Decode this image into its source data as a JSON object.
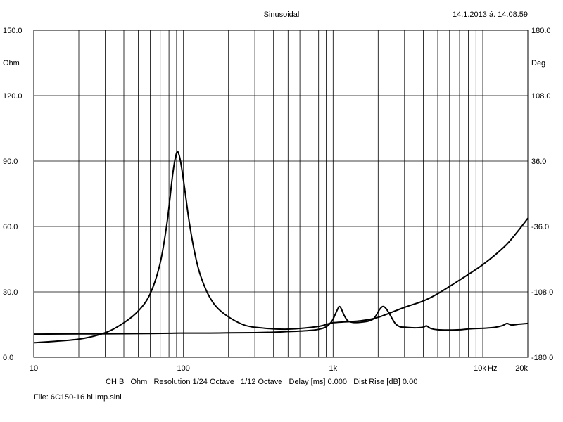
{
  "header": {
    "title": "Sinusoidal",
    "timestamp": "14.1.2013 á. 14.08.59"
  },
  "footer": {
    "channel": "CH B",
    "unit": "Ohm",
    "resolution": "Resolution 1/24 Octave",
    "smoothing": "1/12 Octave",
    "delay": "Delay [ms] 0.000",
    "dist_rise": "Dist Rise [dB] 0.00",
    "file": "File: 6C150-16 hi Imp.sini"
  },
  "chart_data": {
    "type": "line",
    "x_scale": "log",
    "xlim": [
      10,
      20000
    ],
    "x_ticks": [
      {
        "value": 10,
        "label": "10"
      },
      {
        "value": 100,
        "label": "100"
      },
      {
        "value": 1000,
        "label": "1k"
      },
      {
        "value": 10000,
        "label": "10k"
      },
      {
        "value": 20000,
        "label": "20k"
      }
    ],
    "x_unit": "Hz",
    "ylim_left": [
      0,
      150
    ],
    "y_ticks_left": [
      "0.0",
      "30.0",
      "60.0",
      "90.0",
      "120.0",
      "150.0"
    ],
    "ylabel_left": "Ohm",
    "ylim_right": [
      -180,
      180
    ],
    "y_ticks_right": [
      "-180.0",
      "-108.0",
      "-36.0",
      "36.0",
      "108.0",
      "180.0"
    ],
    "ylabel_right": "Deg",
    "grid": true,
    "series": [
      {
        "axis": "left",
        "color": "#000000",
        "points": [
          [
            10,
            10.6
          ],
          [
            20,
            10.7
          ],
          [
            40,
            10.8
          ],
          [
            60,
            10.9
          ],
          [
            80,
            11.0
          ],
          [
            100,
            11.1
          ],
          [
            150,
            11.1
          ],
          [
            200,
            11.2
          ],
          [
            300,
            11.3
          ],
          [
            400,
            11.5
          ],
          [
            500,
            11.8
          ],
          [
            600,
            12.0
          ],
          [
            700,
            12.3
          ],
          [
            800,
            12.8
          ],
          [
            900,
            14.0
          ],
          [
            980,
            16.5
          ],
          [
            1030,
            19.5
          ],
          [
            1080,
            22.5
          ],
          [
            1100,
            23.3
          ],
          [
            1130,
            22.5
          ],
          [
            1180,
            19.5
          ],
          [
            1250,
            16.8
          ],
          [
            1350,
            16.0
          ],
          [
            1500,
            16.0
          ],
          [
            1700,
            16.5
          ],
          [
            1850,
            17.5
          ],
          [
            1950,
            19.5
          ],
          [
            2050,
            22.0
          ],
          [
            2150,
            23.3
          ],
          [
            2250,
            22.5
          ],
          [
            2400,
            19.5
          ],
          [
            2600,
            15.5
          ],
          [
            2800,
            14.0
          ],
          [
            3000,
            13.8
          ],
          [
            3500,
            13.5
          ],
          [
            4000,
            13.8
          ],
          [
            4200,
            14.4
          ],
          [
            4500,
            13.2
          ],
          [
            5000,
            12.6
          ],
          [
            6000,
            12.5
          ],
          [
            7000,
            12.6
          ],
          [
            8000,
            13.0
          ],
          [
            9000,
            13.2
          ],
          [
            10000,
            13.3
          ],
          [
            12000,
            13.7
          ],
          [
            13500,
            14.5
          ],
          [
            14500,
            15.5
          ],
          [
            15500,
            14.8
          ],
          [
            17000,
            15.1
          ],
          [
            20000,
            15.5
          ]
        ]
      },
      {
        "axis": "right",
        "color": "#000000",
        "points": [
          [
            10,
            -164.0
          ],
          [
            20,
            -160.0
          ],
          [
            30,
            -153.0
          ],
          [
            40,
            -142.0
          ],
          [
            50,
            -129.0
          ],
          [
            60,
            -110.0
          ],
          [
            70,
            -76.0
          ],
          [
            78,
            -30.0
          ],
          [
            85,
            23.0
          ],
          [
            90,
            45.0
          ],
          [
            93,
            44.0
          ],
          [
            97,
            30.0
          ],
          [
            103,
            0.0
          ],
          [
            110,
            -34.0
          ],
          [
            120,
            -68.0
          ],
          [
            130,
            -90.0
          ],
          [
            150,
            -114.0
          ],
          [
            180,
            -130.0
          ],
          [
            250,
            -144.0
          ],
          [
            350,
            -148.0
          ],
          [
            500,
            -149.0
          ],
          [
            800,
            -146.0
          ],
          [
            1000,
            -142.0
          ],
          [
            1500,
            -140.0
          ],
          [
            2000,
            -136.0
          ],
          [
            3000,
            -125.0
          ],
          [
            4000,
            -118.0
          ],
          [
            5000,
            -110.0
          ],
          [
            7000,
            -95.0
          ],
          [
            10000,
            -78.0
          ],
          [
            14000,
            -58.0
          ],
          [
            17000,
            -42.0
          ],
          [
            20000,
            -27.0
          ]
        ]
      }
    ]
  }
}
